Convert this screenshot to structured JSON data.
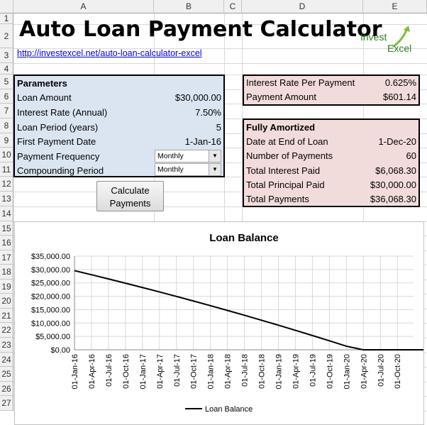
{
  "columns": [
    "A",
    "B",
    "C",
    "D",
    "E"
  ],
  "rows": [
    "1",
    "2",
    "3",
    "4",
    "5",
    "6",
    "7",
    "8",
    "9",
    "10",
    "11",
    "12",
    "13",
    "14",
    "15",
    "16",
    "17",
    "18",
    "19",
    "20",
    "21",
    "22",
    "23",
    "24",
    "25",
    "26",
    "27"
  ],
  "title": "Auto Loan Payment Calculator",
  "link": "http://investexcel.net/auto-loan-calculator-excel",
  "logo": {
    "line1": "Invest",
    "line2": "Excel",
    "color": "#2e7d1f"
  },
  "parameters": {
    "header": "Parameters",
    "items": [
      {
        "label": "Loan Amount",
        "value": "$30,000.00"
      },
      {
        "label": "Interest Rate (Annual)",
        "value": "7.50%"
      },
      {
        "label": "Loan Period (years)",
        "value": "5"
      },
      {
        "label": "First Payment Date",
        "value": "1-Jan-16"
      }
    ],
    "payment_frequency": {
      "label": "Payment Frequency",
      "selected": "Monthly"
    },
    "compounding_period": {
      "label": "Compounding Period",
      "selected": "Monthly"
    }
  },
  "calculate_button": {
    "line1": "Calculate",
    "line2": "Payments"
  },
  "summary": [
    {
      "label": "Interest Rate Per Payment",
      "value": "0.625%"
    },
    {
      "label": "Payment Amount",
      "value": "$601.14"
    }
  ],
  "amortized": {
    "header": "Fully Amortized",
    "items": [
      {
        "label": "Date at End of Loan",
        "value": "1-Dec-20"
      },
      {
        "label": "Number of Payments",
        "value": "60"
      },
      {
        "label": "Total Interest Paid",
        "value": "$6,068.30"
      },
      {
        "label": "Total Principal Paid",
        "value": "$30,000.00"
      },
      {
        "label": "Total Payments",
        "value": "$36,068.30"
      }
    ]
  },
  "chart_data": {
    "type": "line",
    "title": "Loan Balance",
    "legend": "bottom",
    "ylim": [
      0,
      35000
    ],
    "y_ticks": [
      "$35,000.00",
      "$30,000.00",
      "$25,000.00",
      "$20,000.00",
      "$15,000.00",
      "$10,000.00",
      "$5,000.00",
      "$0.00"
    ],
    "x_ticks": [
      "01-Jan-16",
      "01-Apr-16",
      "01-Jul-16",
      "01-Oct-16",
      "01-Jan-17",
      "01-Apr-17",
      "01-Jul-17",
      "01-Oct-17",
      "01-Jan-18",
      "01-Apr-18",
      "01-Jul-18",
      "01-Oct-18",
      "01-Jan-19",
      "01-Apr-19",
      "01-Jul-19",
      "01-Oct-19",
      "01-Jan-20",
      "01-Apr-20",
      "01-Jul-20",
      "01-Oct-20"
    ],
    "series": [
      {
        "name": "Loan Balance",
        "color": "#000000",
        "x": [
          "01-Jan-16",
          "01-Apr-16",
          "01-Jul-16",
          "01-Oct-16",
          "01-Jan-17",
          "01-Apr-17",
          "01-Jul-17",
          "01-Oct-17",
          "01-Jan-18",
          "01-Apr-18",
          "01-Jul-18",
          "01-Oct-18",
          "01-Jan-19",
          "01-Apr-19",
          "01-Jul-19",
          "01-Oct-19",
          "01-Jan-20",
          "01-Apr-20",
          "01-Jul-20",
          "01-Oct-20",
          "01-Dec-20"
        ],
        "values": [
          29587,
          28051,
          26487,
          24895,
          23274,
          21623,
          19942,
          18229,
          16486,
          14711,
          12903,
          11062,
          9188,
          7279,
          5335,
          3356,
          1341,
          0,
          0,
          0,
          0
        ]
      }
    ]
  }
}
